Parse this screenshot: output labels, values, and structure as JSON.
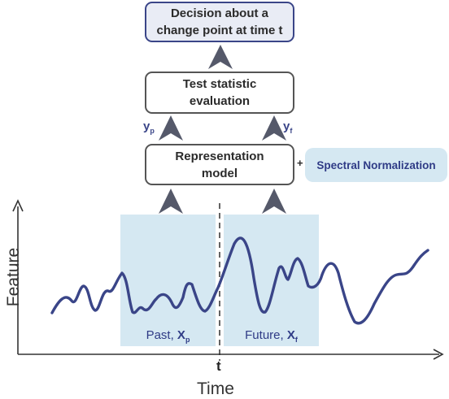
{
  "decision": {
    "line1": "Decision about a",
    "line2": "change point at time t"
  },
  "test_statistic": {
    "line1": "Test statistic",
    "line2": "evaluation"
  },
  "representation": {
    "line1": "Representation",
    "line2": "model"
  },
  "spectral": {
    "plus": "+",
    "label": "Spectral Normalization"
  },
  "outputs": {
    "past": {
      "letter": "y",
      "subscript": "p"
    },
    "future": {
      "letter": "y",
      "subscript": "f"
    }
  },
  "windows": {
    "past": {
      "word": "Past,",
      "letter": "X",
      "subscript": "p"
    },
    "future": {
      "word": "Future,",
      "letter": "X",
      "subscript": "f"
    }
  },
  "axes": {
    "y_label": "Feature",
    "x_label": "Time",
    "tick_label": "t"
  },
  "colors": {
    "signal": "#3a4588",
    "window_fill": "#d5e8f2",
    "arrow": "#55596a",
    "axis": "#333333"
  },
  "icons": {
    "arrow": "upward-chevron-arrow"
  }
}
